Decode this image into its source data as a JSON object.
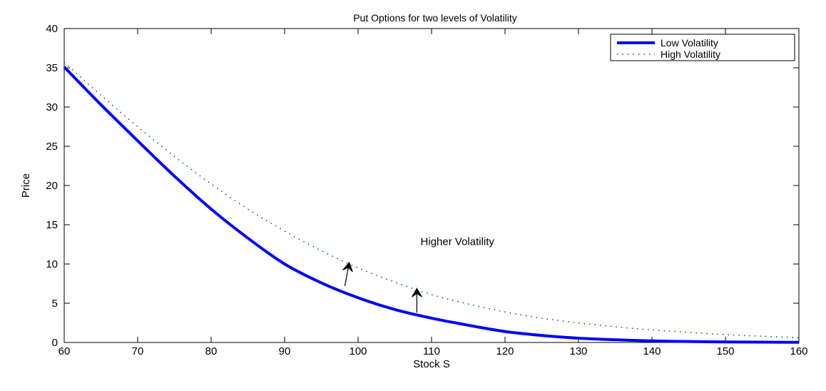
{
  "chart_data": {
    "type": "line",
    "title": "Put Options for two levels of Volatility",
    "xlabel": "Stock S",
    "ylabel": "Price",
    "xlim": [
      60,
      160
    ],
    "ylim": [
      0,
      40
    ],
    "xticks": [
      60,
      70,
      80,
      90,
      100,
      110,
      120,
      130,
      140,
      150,
      160
    ],
    "yticks": [
      0,
      5,
      10,
      15,
      20,
      25,
      30,
      35,
      40
    ],
    "grid": false,
    "legend": "top-right",
    "series": [
      {
        "name": "Low Volatility",
        "color": "#0000ff",
        "style": "solid",
        "x": [
          60,
          65,
          70,
          75,
          80,
          85,
          90,
          95,
          100,
          105,
          110,
          115,
          120,
          125,
          130,
          135,
          140,
          145,
          150,
          155,
          160
        ],
        "y": [
          35.1,
          30.3,
          25.7,
          21.2,
          17.0,
          13.3,
          10.0,
          7.6,
          5.7,
          4.2,
          3.1,
          2.2,
          1.4,
          0.9,
          0.55,
          0.35,
          0.2,
          0.12,
          0.07,
          0.04,
          0.02
        ]
      },
      {
        "name": "High Volatility",
        "color": "#006400",
        "style": "dotted",
        "x": [
          60,
          65,
          70,
          75,
          80,
          85,
          90,
          95,
          100,
          105,
          110,
          115,
          120,
          125,
          130,
          135,
          140,
          145,
          150,
          155,
          160
        ],
        "y": [
          35.7,
          31.5,
          27.5,
          23.7,
          20.2,
          17.0,
          14.2,
          11.7,
          9.5,
          7.7,
          6.1,
          4.9,
          3.9,
          3.1,
          2.5,
          2.0,
          1.6,
          1.3,
          1.0,
          0.8,
          0.6
        ]
      }
    ],
    "annotations": [
      {
        "text": "Higher Volatility",
        "x": 108.5,
        "y": 12.4
      }
    ],
    "arrows": [
      {
        "from": [
          98.2,
          7.2
        ],
        "to": [
          98.8,
          10.2
        ]
      },
      {
        "from": [
          108.0,
          3.8
        ],
        "to": [
          108.0,
          6.9
        ]
      }
    ]
  }
}
